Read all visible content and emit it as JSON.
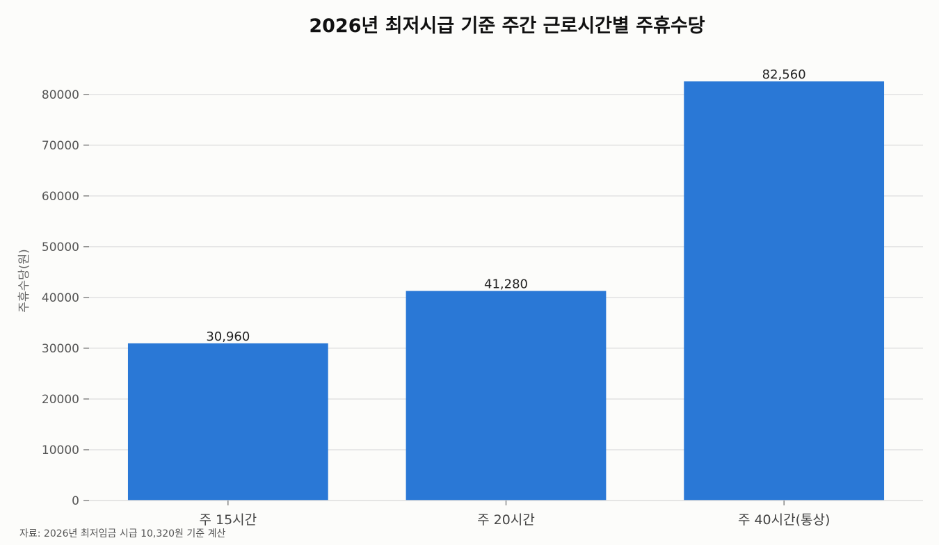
{
  "chart_data": {
    "type": "bar",
    "title": "2026년 최저시급 기준 주간 근로시간별 주휴수당",
    "xlabel": "",
    "ylabel": "주휴수당(원)",
    "categories": [
      "주 15시간",
      "주 20시간",
      "주 40시간(통상)"
    ],
    "values": [
      30960,
      41280,
      82560
    ],
    "value_labels": [
      "30,960",
      "41,280",
      "82,560"
    ],
    "ylim": [
      0,
      86000
    ],
    "yticks": [
      0,
      10000,
      20000,
      30000,
      40000,
      50000,
      60000,
      70000,
      80000
    ],
    "grid": "horizontal",
    "bar_color": "#2a78d6"
  },
  "source_note": "자료: 2026년 최저임금 시급 10,320원 기준 계산"
}
